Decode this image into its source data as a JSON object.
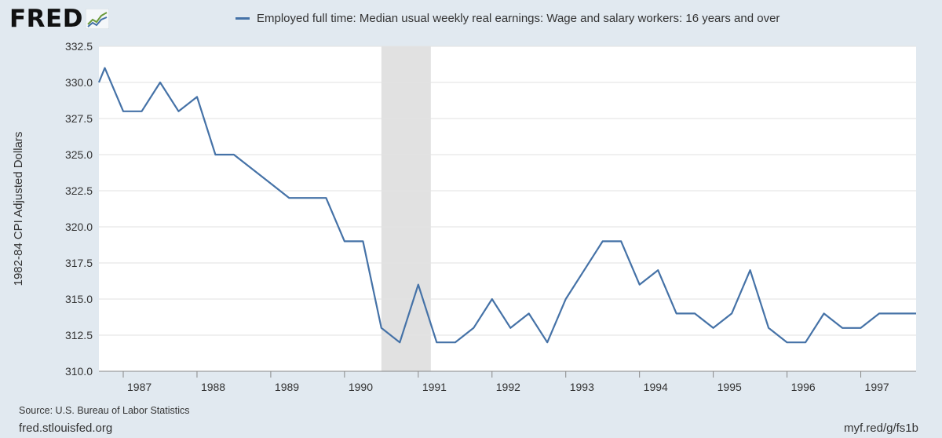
{
  "brand": {
    "logo_text": "FRED"
  },
  "footer": {
    "source": "Source: U.S. Bureau of Labor Statistics",
    "site": "fred.stlouisfed.org",
    "short_url": "myf.red/g/fs1b"
  },
  "colors": {
    "series": "#4572a7",
    "recession": "#e1e1e1",
    "background": "#e1e9f0"
  },
  "chart_data": {
    "type": "line",
    "title": "",
    "ylabel": "1982-84 CPI Adjusted Dollars",
    "xlabel": "",
    "ylim": [
      310.0,
      332.5
    ],
    "xlim": [
      1986.67,
      1997.75
    ],
    "y_ticks": [
      "310.0",
      "312.5",
      "315.0",
      "317.5",
      "320.0",
      "322.5",
      "325.0",
      "327.5",
      "330.0",
      "332.5"
    ],
    "x_ticks": [
      "1987",
      "1988",
      "1989",
      "1990",
      "1991",
      "1992",
      "1993",
      "1994",
      "1995",
      "1996",
      "1997"
    ],
    "grid": "horizontal",
    "legend_position": "top",
    "recessions": [
      {
        "start": 1990.5,
        "end": 1991.17
      }
    ],
    "series": [
      {
        "name": "Employed full time: Median usual weekly real earnings: Wage and salary workers: 16 years and over",
        "x": [
          1986.67,
          1986.75,
          1987.0,
          1987.25,
          1987.5,
          1987.75,
          1988.0,
          1988.25,
          1988.5,
          1988.75,
          1989.0,
          1989.25,
          1989.5,
          1989.75,
          1990.0,
          1990.25,
          1990.5,
          1990.75,
          1991.0,
          1991.25,
          1991.5,
          1991.75,
          1992.0,
          1992.25,
          1992.5,
          1992.75,
          1993.0,
          1993.25,
          1993.5,
          1993.75,
          1994.0,
          1994.25,
          1994.5,
          1994.75,
          1995.0,
          1995.25,
          1995.5,
          1995.75,
          1996.0,
          1996.25,
          1996.5,
          1996.75,
          1997.0,
          1997.25,
          1997.5,
          1997.75
        ],
        "y": [
          330,
          331,
          328,
          328,
          330,
          328,
          329,
          325,
          325,
          324,
          323,
          322,
          322,
          322,
          319,
          319,
          313,
          312,
          316,
          312,
          312,
          313,
          315,
          313,
          314,
          312,
          315,
          317,
          319,
          319,
          316,
          317,
          314,
          314,
          313,
          314,
          317,
          313,
          312,
          312,
          314,
          313,
          313,
          314,
          314,
          314
        ]
      }
    ]
  }
}
